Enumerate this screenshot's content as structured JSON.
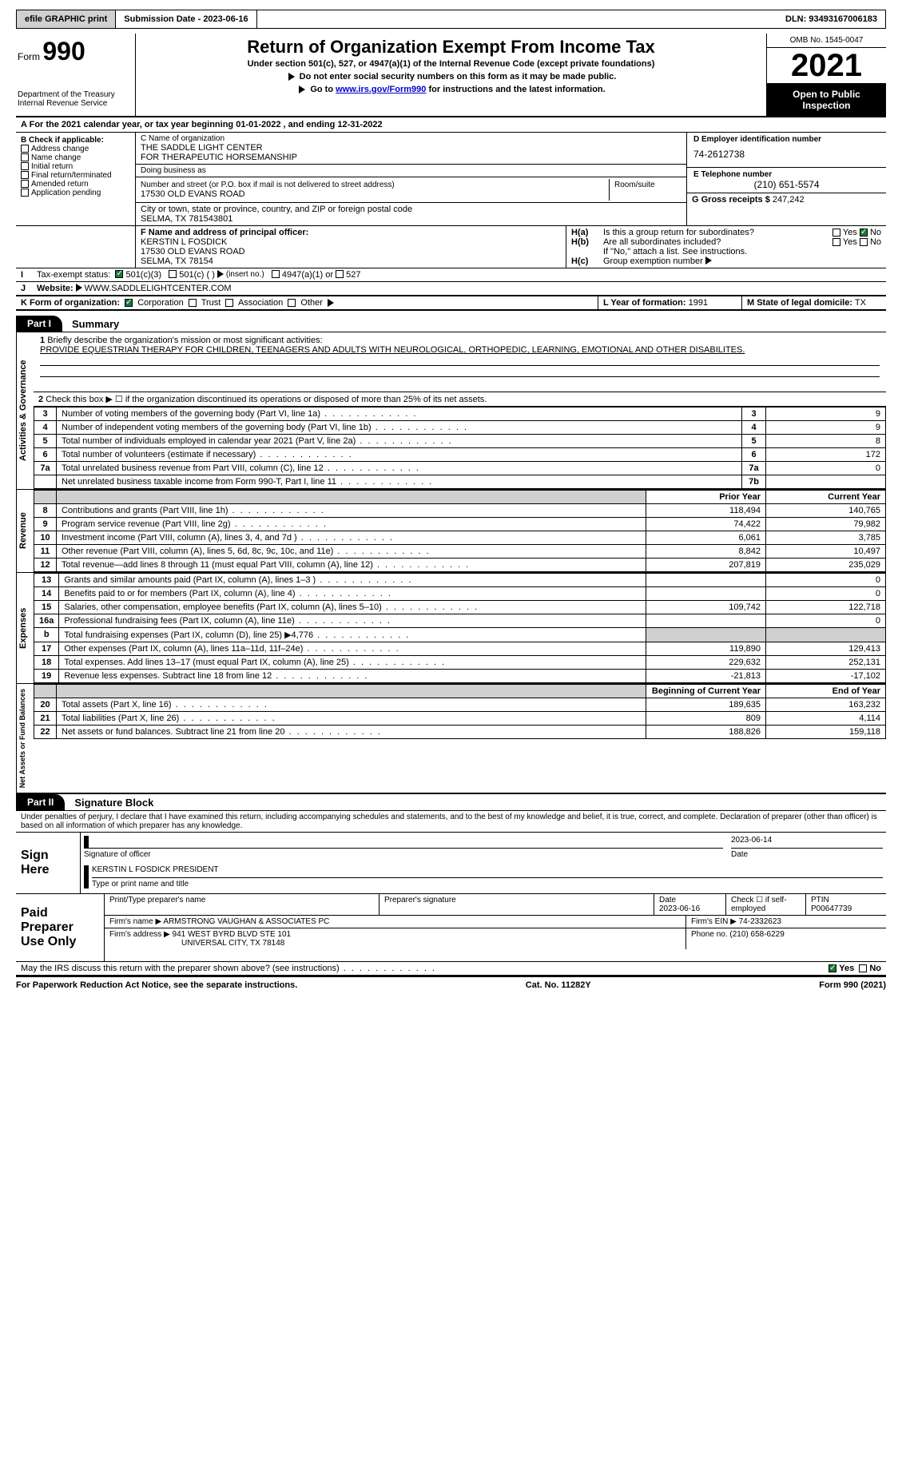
{
  "topbar": {
    "efile": "efile GRAPHIC print",
    "submission": "Submission Date - 2023-06-16",
    "dln": "DLN: 93493167006183"
  },
  "header": {
    "form_label": "Form",
    "form_no": "990",
    "dept": "Department of the Treasury\nInternal Revenue Service",
    "title": "Return of Organization Exempt From Income Tax",
    "sub1": "Under section 501(c), 527, or 4947(a)(1) of the Internal Revenue Code (except private foundations)",
    "sub2": "Do not enter social security numbers on this form as it may be made public.",
    "sub3_pre": "Go to ",
    "sub3_link": "www.irs.gov/Form990",
    "sub3_post": " for instructions and the latest information.",
    "omb": "OMB No. 1545-0047",
    "year": "2021",
    "open": "Open to Public Inspection"
  },
  "calyear": "For the 2021 calendar year, or tax year beginning 01-01-2022   , and ending 12-31-2022",
  "B": {
    "label": "B Check if applicable:",
    "opts": [
      "Address change",
      "Name change",
      "Initial return",
      "Final return/terminated",
      "Amended return",
      "Application pending"
    ]
  },
  "C": {
    "name_lbl": "C Name of organization",
    "name": "THE SADDLE LIGHT CENTER\nFOR THERAPEUTIC HORSEMANSHIP",
    "dba_lbl": "Doing business as",
    "dba": "",
    "street_lbl": "Number and street (or P.O. box if mail is not delivered to street address)",
    "street": "17530 OLD EVANS ROAD",
    "room_lbl": "Room/suite",
    "room": "",
    "city_lbl": "City or town, state or province, country, and ZIP or foreign postal code",
    "city": "SELMA, TX   781543801"
  },
  "D": {
    "lbl": "D Employer identification number",
    "val": "74-2612738"
  },
  "E": {
    "lbl": "E Telephone number",
    "val": "(210) 651-5574"
  },
  "G": {
    "lbl": "G Gross receipts $",
    "val": "247,242"
  },
  "F": {
    "lbl": "F Name and address of principal officer:",
    "name": "KERSTIN L FOSDICK",
    "addr1": "17530 OLD EVANS ROAD",
    "addr2": "SELMA, TX  78154"
  },
  "H": {
    "a": "Is this a group return for subordinates?",
    "b": "Are all subordinates included?",
    "b_note": "If \"No,\" attach a list. See instructions.",
    "c": "Group exemption number",
    "yes": "Yes",
    "no": "No"
  },
  "I": {
    "lbl": "Tax-exempt status:",
    "o1": "501(c)(3)",
    "o2": "501(c) (   )",
    "o2_hint": "(insert no.)",
    "o3": "4947(a)(1) or",
    "o4": "527"
  },
  "J": {
    "lbl": "Website:",
    "val": "WWW.SADDLELIGHTCENTER.COM"
  },
  "K": {
    "lbl": "K Form of organization:",
    "opts": [
      "Corporation",
      "Trust",
      "Association",
      "Other"
    ]
  },
  "L": {
    "lbl": "L Year of formation:",
    "val": "1991"
  },
  "M": {
    "lbl": "M State of legal domicile:",
    "val": "TX"
  },
  "parts": {
    "p1": "Part I",
    "p1_title": "Summary",
    "p2": "Part II",
    "p2_title": "Signature Block"
  },
  "mission": {
    "lbl": "Briefly describe the organization's mission or most significant activities:",
    "text": "PROVIDE EQUESTRIAN THERAPY FOR CHILDREN, TEENAGERS AND ADULTS WITH NEUROLOGICAL, ORTHOPEDIC, LEARNING, EMOTIONAL AND OTHER DISABILITES."
  },
  "line2": "Check this box ▶ ☐  if the organization discontinued its operations or disposed of more than 25% of its net assets.",
  "sideLabels": {
    "gov": "Activities & Governance",
    "rev": "Revenue",
    "exp": "Expenses",
    "net": "Net Assets or Fund Balances"
  },
  "gov_lines": [
    {
      "n": "3",
      "t": "Number of voting members of the governing body (Part VI, line 1a)",
      "box": "3",
      "v": "9"
    },
    {
      "n": "4",
      "t": "Number of independent voting members of the governing body (Part VI, line 1b)",
      "box": "4",
      "v": "9"
    },
    {
      "n": "5",
      "t": "Total number of individuals employed in calendar year 2021 (Part V, line 2a)",
      "box": "5",
      "v": "8"
    },
    {
      "n": "6",
      "t": "Total number of volunteers (estimate if necessary)",
      "box": "6",
      "v": "172"
    },
    {
      "n": "7a",
      "t": "Total unrelated business revenue from Part VIII, column (C), line 12",
      "box": "7a",
      "v": "0"
    },
    {
      "n": "",
      "t": "Net unrelated business taxable income from Form 990-T, Part I, line 11",
      "box": "7b",
      "v": ""
    }
  ],
  "cols": {
    "prior": "Prior Year",
    "current": "Current Year",
    "begin": "Beginning of Current Year",
    "end": "End of Year"
  },
  "rev_lines": [
    {
      "n": "8",
      "t": "Contributions and grants (Part VIII, line 1h)",
      "p": "118,494",
      "c": "140,765"
    },
    {
      "n": "9",
      "t": "Program service revenue (Part VIII, line 2g)",
      "p": "74,422",
      "c": "79,982"
    },
    {
      "n": "10",
      "t": "Investment income (Part VIII, column (A), lines 3, 4, and 7d )",
      "p": "6,061",
      "c": "3,785"
    },
    {
      "n": "11",
      "t": "Other revenue (Part VIII, column (A), lines 5, 6d, 8c, 9c, 10c, and 11e)",
      "p": "8,842",
      "c": "10,497"
    },
    {
      "n": "12",
      "t": "Total revenue—add lines 8 through 11 (must equal Part VIII, column (A), line 12)",
      "p": "207,819",
      "c": "235,029"
    }
  ],
  "exp_lines": [
    {
      "n": "13",
      "t": "Grants and similar amounts paid (Part IX, column (A), lines 1–3 )",
      "p": "",
      "c": "0"
    },
    {
      "n": "14",
      "t": "Benefits paid to or for members (Part IX, column (A), line 4)",
      "p": "",
      "c": "0"
    },
    {
      "n": "15",
      "t": "Salaries, other compensation, employee benefits (Part IX, column (A), lines 5–10)",
      "p": "109,742",
      "c": "122,718"
    },
    {
      "n": "16a",
      "t": "Professional fundraising fees (Part IX, column (A), line 11e)",
      "p": "",
      "c": "0"
    },
    {
      "n": "b",
      "t": "Total fundraising expenses (Part IX, column (D), line 25) ▶4,776",
      "p": "GREY",
      "c": "GREY"
    },
    {
      "n": "17",
      "t": "Other expenses (Part IX, column (A), lines 11a–11d, 11f–24e)",
      "p": "119,890",
      "c": "129,413"
    },
    {
      "n": "18",
      "t": "Total expenses. Add lines 13–17 (must equal Part IX, column (A), line 25)",
      "p": "229,632",
      "c": "252,131"
    },
    {
      "n": "19",
      "t": "Revenue less expenses. Subtract line 18 from line 12",
      "p": "-21,813",
      "c": "-17,102"
    }
  ],
  "net_lines": [
    {
      "n": "20",
      "t": "Total assets (Part X, line 16)",
      "p": "189,635",
      "c": "163,232"
    },
    {
      "n": "21",
      "t": "Total liabilities (Part X, line 26)",
      "p": "809",
      "c": "4,114"
    },
    {
      "n": "22",
      "t": "Net assets or fund balances. Subtract line 21 from line 20",
      "p": "188,826",
      "c": "159,118"
    }
  ],
  "perjury": "Under penalties of perjury, I declare that I have examined this return, including accompanying schedules and statements, and to the best of my knowledge and belief, it is true, correct, and complete. Declaration of preparer (other than officer) is based on all information of which preparer has any knowledge.",
  "sign": {
    "label": "Sign Here",
    "sig_lbl": "Signature of officer",
    "date": "2023-06-14",
    "date_lbl": "Date",
    "name": "KERSTIN L FOSDICK  PRESIDENT",
    "name_lbl": "Type or print name and title"
  },
  "paid": {
    "label": "Paid Preparer Use Only",
    "print_lbl": "Print/Type preparer's name",
    "sig_lbl": "Preparer's signature",
    "date_lbl": "Date",
    "date": "2023-06-16",
    "check_lbl": "Check ☐ if self-employed",
    "ptin_lbl": "PTIN",
    "ptin": "P00647739",
    "firm_name_lbl": "Firm's name   ▶",
    "firm_name": "ARMSTRONG VAUGHAN & ASSOCIATES PC",
    "firm_ein_lbl": "Firm's EIN ▶",
    "firm_ein": "74-2332623",
    "firm_addr_lbl": "Firm's address ▶",
    "firm_addr1": "941 WEST BYRD BLVD STE 101",
    "firm_addr2": "UNIVERSAL CITY, TX  78148",
    "phone_lbl": "Phone no.",
    "phone": "(210) 658-6229"
  },
  "discuss": "May the IRS discuss this return with the preparer shown above? (see instructions)",
  "footer": {
    "left": "For Paperwork Reduction Act Notice, see the separate instructions.",
    "mid": "Cat. No. 11282Y",
    "right": "Form 990 (2021)"
  },
  "colors": {
    "accent_green": "#1a7a3a",
    "link": "#0000cc",
    "grey_bg": "#d0d0d0"
  }
}
